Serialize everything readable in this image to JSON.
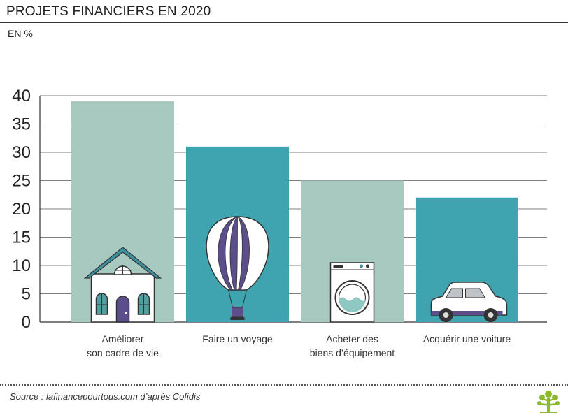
{
  "header": {
    "title": "PROJETS FINANCIERS EN 2020",
    "unit": "EN %"
  },
  "footer": {
    "source": "Source : lafinancepourtous.com d’après Cofidis",
    "logo_icon": "tree-logo-icon"
  },
  "colors": {
    "light_bar": "#a8c9bf",
    "dark_bar": "#3fa4b0",
    "house_roof": "#3c8f9c",
    "purple": "#5b4e8a",
    "tree_logo": "#8dbb2a"
  },
  "chart_data": {
    "type": "bar",
    "categories": [
      "Améliorer\nson cadre de vie",
      "Faire un voyage",
      "Acheter des\nbiens d’équipement",
      "Acquérir une voiture"
    ],
    "values": [
      39,
      31,
      25,
      22
    ],
    "bar_colors": [
      "#a8c9bf",
      "#3fa4b0",
      "#a8c9bf",
      "#3fa4b0"
    ],
    "icons": [
      "house-icon",
      "hot-air-balloon-icon",
      "washing-machine-icon",
      "car-icon"
    ],
    "yticks": [
      0,
      5,
      10,
      15,
      20,
      25,
      30,
      35,
      40
    ],
    "ylim": [
      0,
      40
    ],
    "grid": true,
    "legend": "none"
  }
}
